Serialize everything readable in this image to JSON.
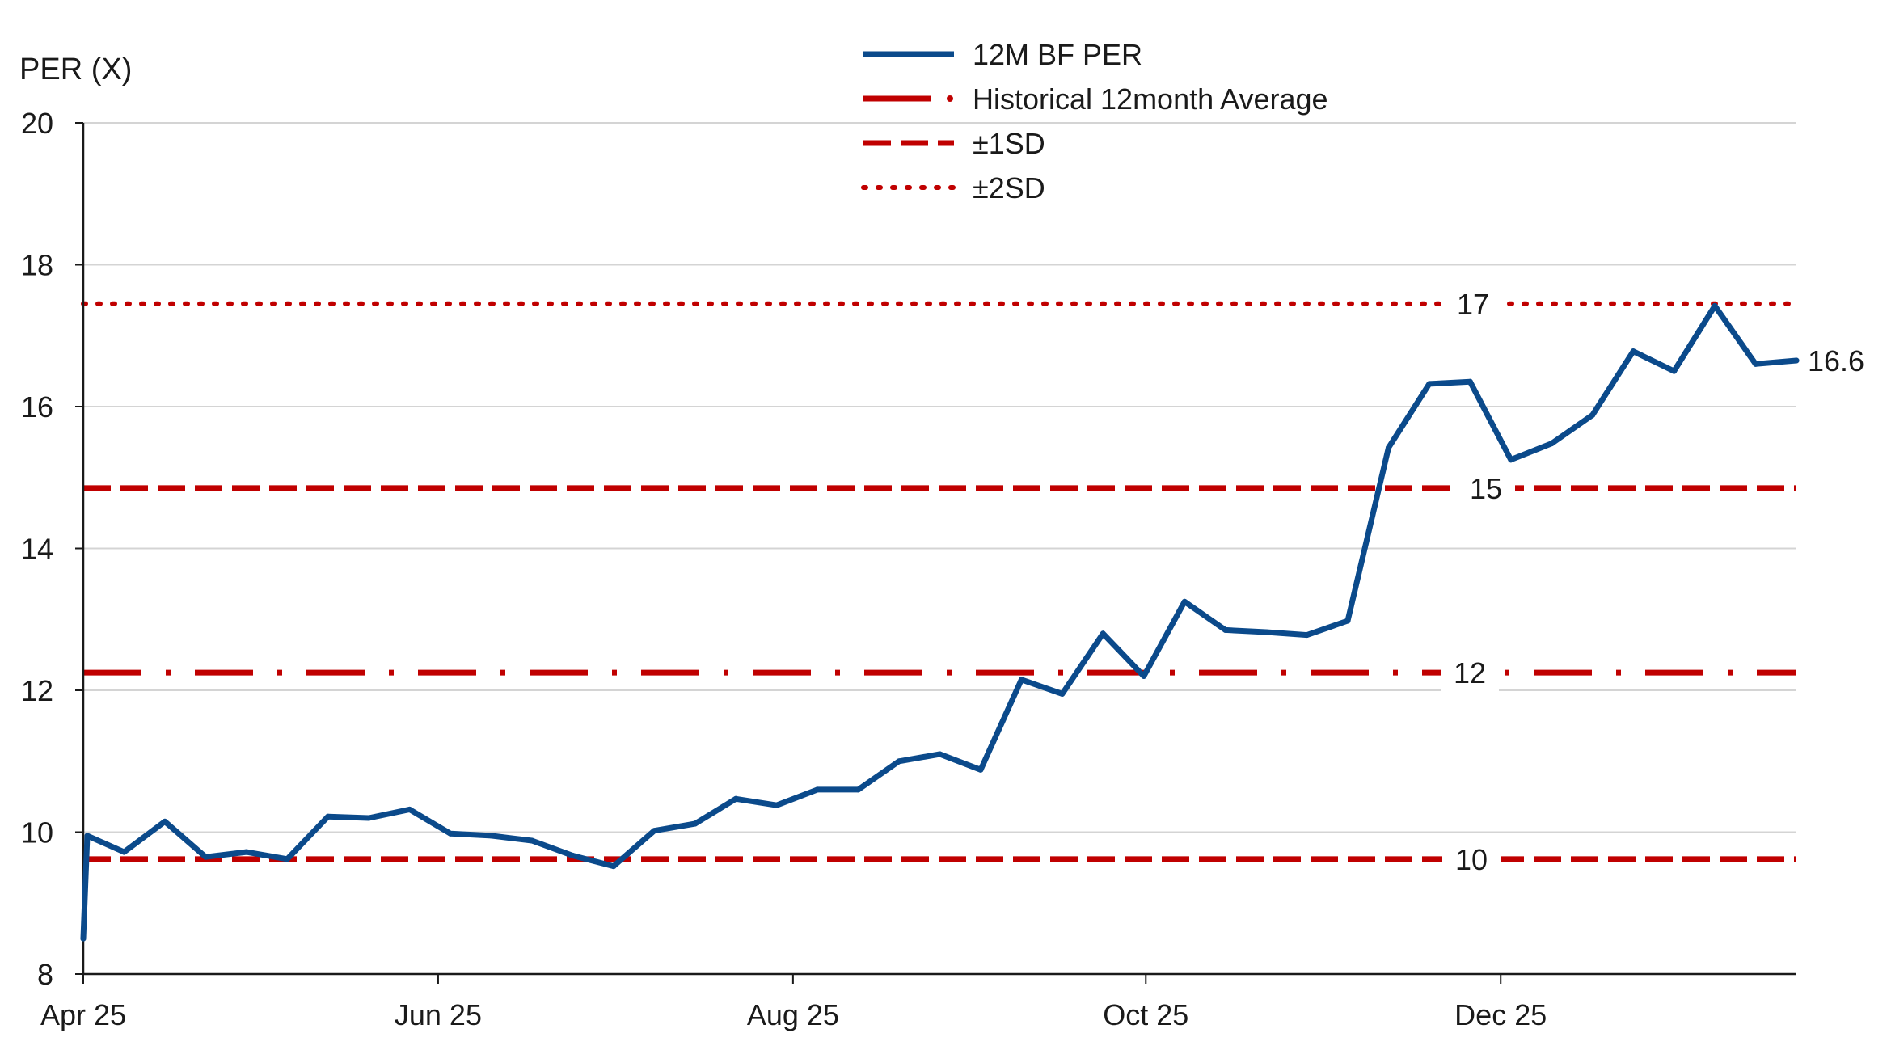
{
  "chart_data": {
    "type": "line",
    "ylabel": "PER (X)",
    "ylim": [
      8,
      20
    ],
    "yticks": [
      "20",
      "18",
      "16",
      "14",
      "12",
      "10",
      "8"
    ],
    "xticks": [
      "Apr 25",
      "Jun 25",
      "Aug 25",
      "Oct 25",
      "Dec 25"
    ],
    "grid": true,
    "legend_position": "top-center",
    "series": [
      {
        "name": "12M BF PER",
        "color": "#0b4a8b",
        "x": [
          0,
          0.1,
          1,
          2,
          3,
          4,
          5,
          6,
          7,
          8,
          9,
          10,
          11,
          12,
          13,
          14,
          15,
          16,
          17,
          18,
          19,
          20,
          21,
          22,
          23,
          24,
          25,
          26,
          27,
          28,
          29,
          30,
          31,
          32,
          33,
          34,
          35,
          36,
          37,
          38,
          39,
          40,
          41,
          42
        ],
        "values": [
          8.5,
          9.95,
          9.72,
          10.15,
          9.65,
          9.72,
          9.62,
          10.22,
          10.2,
          10.32,
          9.98,
          9.95,
          9.88,
          9.67,
          9.52,
          10.02,
          10.12,
          10.47,
          10.38,
          10.6,
          10.6,
          11.0,
          11.1,
          10.88,
          12.15,
          11.95,
          12.8,
          12.2,
          13.25,
          12.85,
          12.82,
          12.78,
          12.98,
          15.42,
          16.32,
          16.35,
          15.25,
          15.48,
          15.88,
          16.78,
          16.5,
          17.42,
          16.6,
          16.65
        ]
      }
    ],
    "reference_lines": [
      {
        "name": "Historical 12month Average",
        "value": 12.25,
        "label": "12",
        "style": "dash-dot",
        "color": "#c00000"
      },
      {
        "name": "±1SD",
        "value": 14.85,
        "label": "15",
        "style": "dashed",
        "color": "#c00000"
      },
      {
        "name": "±1SD",
        "value": 9.62,
        "label": "10",
        "style": "dashed",
        "color": "#c00000"
      },
      {
        "name": "±2SD",
        "value": 17.45,
        "label": "17",
        "style": "dotted",
        "color": "#c00000"
      }
    ],
    "end_label": "16.6",
    "legend": [
      {
        "label": "12M BF PER",
        "style": "solid",
        "color": "#0b4a8b"
      },
      {
        "label": "Historical 12month Average",
        "style": "dash-dot",
        "color": "#c00000"
      },
      {
        "label": "±1SD",
        "style": "dashed",
        "color": "#c00000"
      },
      {
        "label": "±2SD",
        "style": "dotted",
        "color": "#c00000"
      }
    ]
  }
}
